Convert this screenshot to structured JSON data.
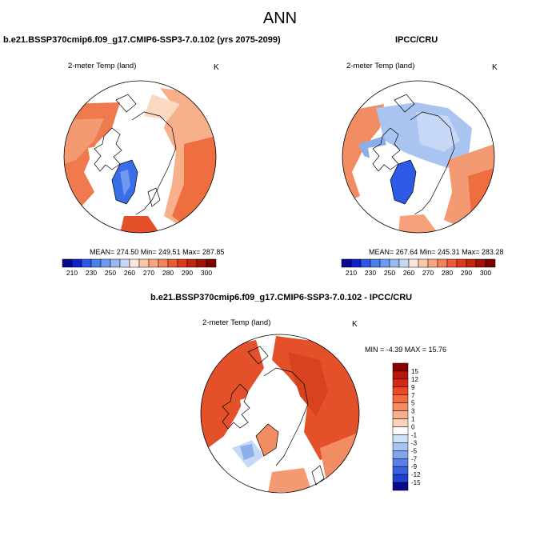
{
  "title": "ANN",
  "panels": [
    {
      "title": "b.e21.BSSP370cmip6.f09_g17.CMIP6-SSP3-7.0.102 (yrs 2075-2099)",
      "variable": "2-meter Temp (land)",
      "units": "K",
      "stats": "MEAN= 274.50   Min= 249.51   Max= 287.85",
      "colorbar": {
        "levels": [
          "210",
          "230",
          "250",
          "260",
          "270",
          "280",
          "290",
          "300"
        ],
        "colors": [
          "#08088a",
          "#0c22c8",
          "#2c5ae6",
          "#4a7ee8",
          "#6d9af0",
          "#9ab8f0",
          "#c6d8f5",
          "#fde6da",
          "#fcc6a8",
          "#fca482",
          "#f78358",
          "#ee5a35",
          "#dc3a1a",
          "#c0260e",
          "#a01206",
          "#7a0000"
        ]
      }
    },
    {
      "title": "IPCC/CRU",
      "variable": "2-meter Temp (land)",
      "units": "K",
      "stats": "MEAN= 267.64   Min= 245.31   Max= 283.28",
      "colorbar": {
        "levels": [
          "210",
          "230",
          "250",
          "260",
          "270",
          "280",
          "290",
          "300"
        ],
        "colors": [
          "#08088a",
          "#0c22c8",
          "#2c5ae6",
          "#4a7ee8",
          "#6d9af0",
          "#9ab8f0",
          "#c6d8f5",
          "#fde6da",
          "#fcc6a8",
          "#fca482",
          "#f78358",
          "#ee5a35",
          "#dc3a1a",
          "#c0260e",
          "#a01206",
          "#7a0000"
        ]
      }
    },
    {
      "title": "b.e21.BSSP370cmip6.f09_g17.CMIP6-SSP3-7.0.102 - IPCC/CRU",
      "variable": "2-meter Temp (land)",
      "units": "K",
      "stats": "MIN =  -4.39 MAX =  15.76",
      "colorbar": {
        "levels": [
          "15",
          "12",
          "9",
          "7",
          "5",
          "3",
          "1",
          "0",
          "-1",
          "-3",
          "-5",
          "-7",
          "-9",
          "-12",
          "-15"
        ],
        "colors": [
          "#8a0000",
          "#b8140a",
          "#d42a14",
          "#e84a24",
          "#f06c3c",
          "#f48e62",
          "#f8b08c",
          "#fcd2ba",
          "#ffffff",
          "#d0e0f6",
          "#a8c4f0",
          "#82a4ec",
          "#5a80e8",
          "#3860e0",
          "#1e40d0",
          "#08088a"
        ]
      }
    }
  ],
  "colors": {
    "blue_dark": "#2c5ae6",
    "blue_light": "#a9c4f0",
    "red_strong": "#e4502a",
    "red_light": "#f7b38c",
    "red_mid": "#f0845a"
  }
}
